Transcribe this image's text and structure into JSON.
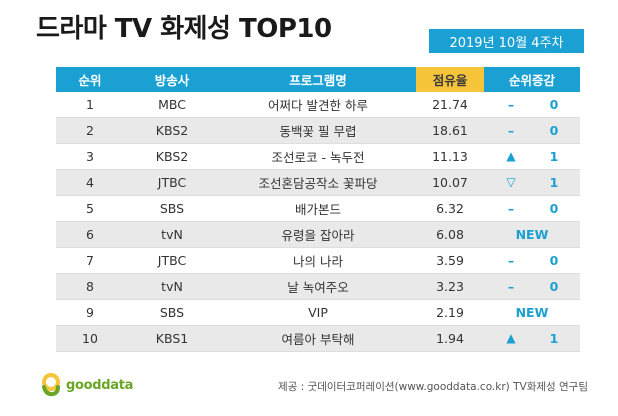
{
  "title": "드라마 TV 화제성 TOP10",
  "date_label": "2019년 10월 4주차",
  "colors": {
    "accent": "#1aa0d2",
    "highlight": "#f7c53a",
    "stripe": "#e9e9e9",
    "logo_green": "#6aa527"
  },
  "headers": [
    "순위",
    "방송사",
    "프로그램명",
    "점유율",
    "순위증감"
  ],
  "rows": [
    {
      "rank": "1",
      "channel": "MBC",
      "program": "어쩌다 발견한 하루",
      "share": "21.74",
      "change_symbol": "–",
      "change_value": "0"
    },
    {
      "rank": "2",
      "channel": "KBS2",
      "program": "동백꽃 필 무렵",
      "share": "18.61",
      "change_symbol": "–",
      "change_value": "0"
    },
    {
      "rank": "3",
      "channel": "KBS2",
      "program": "조선로코 - 녹두전",
      "share": "11.13",
      "change_symbol": "▲",
      "change_value": "1"
    },
    {
      "rank": "4",
      "channel": "JTBC",
      "program": "조선혼담공작소 꽃파당",
      "share": "10.07",
      "change_symbol": "▽",
      "change_value": "1"
    },
    {
      "rank": "5",
      "channel": "SBS",
      "program": "배가본드",
      "share": "6.32",
      "change_symbol": "–",
      "change_value": "0"
    },
    {
      "rank": "6",
      "channel": "tvN",
      "program": "유령을 잡아라",
      "share": "6.08",
      "change_new": "NEW"
    },
    {
      "rank": "7",
      "channel": "JTBC",
      "program": "나의 나라",
      "share": "3.59",
      "change_symbol": "–",
      "change_value": "0"
    },
    {
      "rank": "8",
      "channel": "tvN",
      "program": "날 녹여주오",
      "share": "3.23",
      "change_symbol": "–",
      "change_value": "0"
    },
    {
      "rank": "9",
      "channel": "SBS",
      "program": "VIP",
      "share": "2.19",
      "change_new": "NEW"
    },
    {
      "rank": "10",
      "channel": "KBS1",
      "program": "여름아 부탁해",
      "share": "1.94",
      "change_symbol": "▲",
      "change_value": "1"
    }
  ],
  "logo_text": "gooddata",
  "source": "제공 : 굿데이터코퍼레이션(www.gooddata.co.kr) TV화제성 연구팀"
}
